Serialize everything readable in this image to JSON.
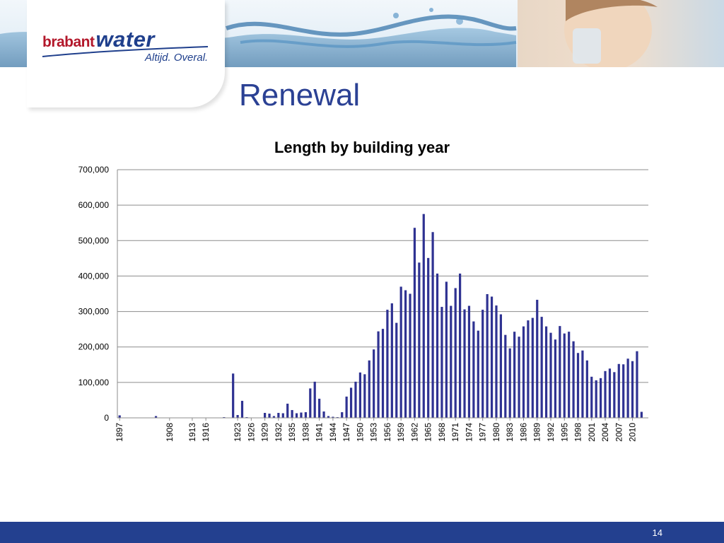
{
  "header": {
    "brand_part1": "brabant",
    "brand_part2": "water",
    "tagline": "Altijd. Overal."
  },
  "slide_title": "Renewal",
  "page_number": "14",
  "colors": {
    "bar": "#2f3292",
    "brand_red": "#b3182b",
    "brand_blue": "#1f3f8c",
    "footer": "#23408f",
    "title": "#2b4194"
  },
  "chart_data": {
    "type": "bar",
    "title": "Length by building year",
    "xlabel": "",
    "ylabel": "",
    "ylim": [
      0,
      700000
    ],
    "yticks": [
      0,
      100000,
      200000,
      300000,
      400000,
      500000,
      600000,
      700000
    ],
    "ytick_labels": [
      "0",
      "100,000",
      "200,000",
      "300,000",
      "400,000",
      "500,000",
      "600,000",
      "700,000"
    ],
    "grid": true,
    "legend": "none",
    "categories": [
      1897,
      1905,
      1908,
      1910,
      1911,
      1913,
      1914,
      1915,
      1916,
      1920,
      1922,
      1923,
      1924,
      1925,
      1926,
      1927,
      1928,
      1929,
      1930,
      1931,
      1932,
      1933,
      1934,
      1935,
      1936,
      1937,
      1938,
      1939,
      1940,
      1941,
      1942,
      1943,
      1944,
      1945,
      1946,
      1947,
      1948,
      1949,
      1950,
      1951,
      1952,
      1953,
      1954,
      1955,
      1956,
      1957,
      1958,
      1959,
      1960,
      1961,
      1962,
      1963,
      1964,
      1965,
      1966,
      1967,
      1968,
      1969,
      1970,
      1971,
      1972,
      1973,
      1974,
      1975,
      1976,
      1977,
      1978,
      1979,
      1980,
      1981,
      1982,
      1983,
      1984,
      1985,
      1986,
      1987,
      1988,
      1989,
      1990,
      1991,
      1992,
      1993,
      1994,
      1995,
      1996,
      1997,
      1998,
      1999,
      2000,
      2001,
      2002,
      2003,
      2004,
      2005,
      2006,
      2007,
      2008,
      2009,
      2010,
      2011,
      2012,
      2013
    ],
    "values": [
      7000,
      5000,
      1000,
      1000,
      500,
      500,
      500,
      500,
      1000,
      2000,
      125000,
      8000,
      48000,
      2000,
      1000,
      1000,
      1000,
      14000,
      12000,
      5000,
      14000,
      13000,
      40000,
      22000,
      13000,
      15000,
      16000,
      83000,
      102000,
      54000,
      18000,
      5000,
      3000,
      2000,
      16000,
      60000,
      85000,
      102000,
      128000,
      123000,
      162000,
      193000,
      244000,
      251000,
      305000,
      323000,
      268000,
      370000,
      360000,
      350000,
      536000,
      438000,
      575000,
      451000,
      524000,
      407000,
      313000,
      384000,
      316000,
      366000,
      407000,
      306000,
      316000,
      272000,
      246000,
      305000,
      349000,
      342000,
      317000,
      292000,
      234000,
      196000,
      243000,
      229000,
      258000,
      275000,
      282000,
      333000,
      285000,
      258000,
      240000,
      221000,
      259000,
      238000,
      243000,
      216000,
      183000,
      190000,
      162000,
      116000,
      106000,
      112000,
      132000,
      139000,
      129000,
      152000,
      151000,
      167000,
      160000,
      188000,
      17000,
      0
    ],
    "x_tick_labels": [
      "1897",
      "1908",
      "1913",
      "1916",
      "1923",
      "1926",
      "1929",
      "1932",
      "1935",
      "1938",
      "1941",
      "1944",
      "1947",
      "1950",
      "1953",
      "1956",
      "1959",
      "1962",
      "1965",
      "1968",
      "1971",
      "1974",
      "1977",
      "1980",
      "1983",
      "1986",
      "1989",
      "1992",
      "1995",
      "1998",
      "2001",
      "2004",
      "2007",
      "2010"
    ]
  }
}
